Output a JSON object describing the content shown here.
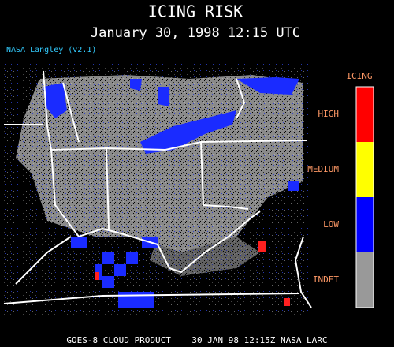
{
  "header": {
    "title": "ICING RISK",
    "subtitle": "January 30, 1998 12:15 UTC",
    "version": "NASA Langley (v2.1)"
  },
  "legend": {
    "title": "ICING",
    "items": [
      {
        "label": "HIGH",
        "color": "#ff0000"
      },
      {
        "label": "MEDIUM",
        "color": "#ffff00"
      },
      {
        "label": "LOW",
        "color": "#0000ff"
      },
      {
        "label": "INDET",
        "color": "#999999"
      }
    ]
  },
  "footer": "GOES-8 CLOUD PRODUCT    30 JAN 98 12:15Z NASA LARC"
}
